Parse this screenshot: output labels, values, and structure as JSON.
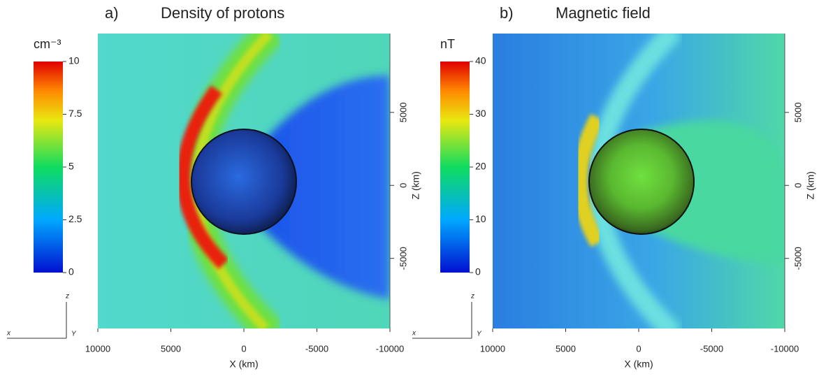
{
  "chart_data": [
    {
      "type": "heatmap",
      "label": "a)",
      "title": "Density of protons",
      "x_label": "X (km)",
      "y_label": "Z (km)",
      "xlim": [
        10000,
        -10000
      ],
      "xticks": [
        10000,
        5000,
        0,
        -5000,
        -10000
      ],
      "ylim": [
        -9800,
        10400
      ],
      "yticks": [
        -5000,
        0,
        5000
      ],
      "colorbar": {
        "label": "cm⁻³",
        "lim": [
          0,
          10
        ],
        "ticks": [
          0,
          2.5,
          5,
          7.5,
          10
        ]
      },
      "axis_triad": [
        "z",
        "x",
        "Y"
      ]
    },
    {
      "type": "heatmap",
      "label": "b)",
      "title": "Magnetic field",
      "x_label": "X (km)",
      "y_label": "Z (km)",
      "xlim": [
        10000,
        -10000
      ],
      "xticks": [
        10000,
        5000,
        0,
        -5000,
        -10000
      ],
      "ylim": [
        -9800,
        10400
      ],
      "yticks": [
        -5000,
        0,
        5000
      ],
      "colorbar": {
        "label": "nT",
        "lim": [
          0,
          40
        ],
        "ticks": [
          0,
          10,
          20,
          30,
          40
        ]
      },
      "axis_triad": [
        "z",
        "x",
        "Y"
      ]
    }
  ]
}
